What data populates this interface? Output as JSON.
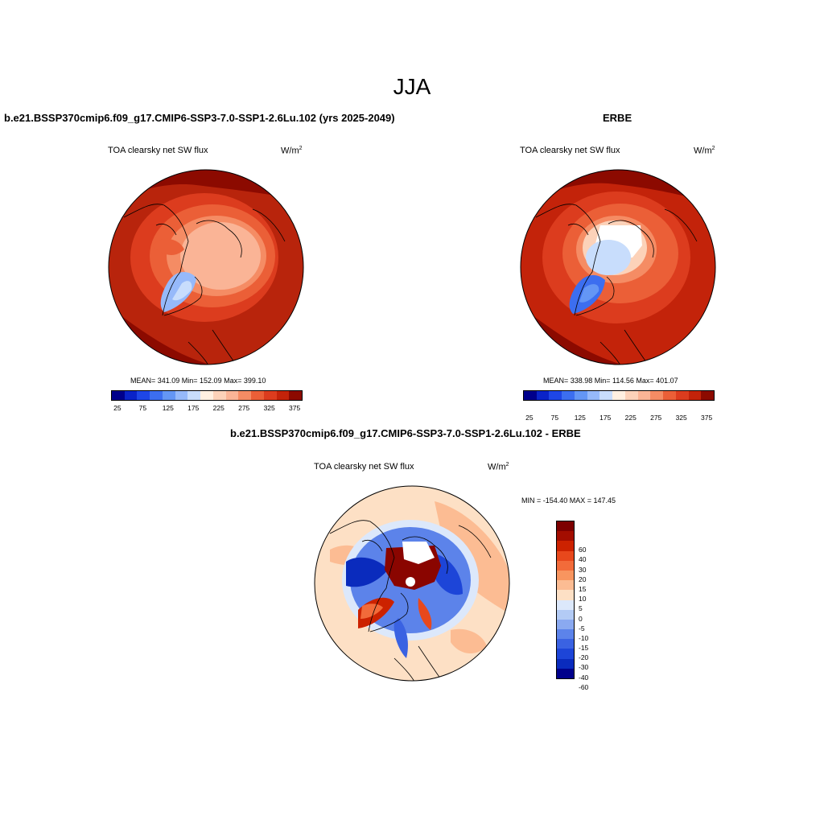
{
  "season": "JJA",
  "panels": {
    "model": {
      "title": "b.e21.BSSP370cmip6.f09_g17.CMIP6-SSP3-7.0-SSP1-2.6Lu.102 (yrs 2025-2049)",
      "field_label": "TOA clearsky net SW flux",
      "units": "W/m",
      "units_sup": "2",
      "stats": "MEAN= 341.09  Min= 152.09  Max= 399.10"
    },
    "obs": {
      "title": "ERBE",
      "field_label": "TOA clearsky net SW flux",
      "units": "W/m",
      "units_sup": "2",
      "stats": "MEAN= 338.98  Min= 114.56  Max= 401.07"
    },
    "diff": {
      "title": "b.e21.BSSP370cmip6.f09_g17.CMIP6-SSP3-7.0-SSP1-2.6Lu.102 - ERBE",
      "field_label": "TOA clearsky net SW flux",
      "units": "W/m",
      "units_sup": "2",
      "stats": "MIN = -154.40 MAX = 147.45"
    }
  },
  "colorbar_abs": {
    "colors": [
      "#00008b",
      "#0a23c8",
      "#1e46e6",
      "#3c6ef0",
      "#6496f5",
      "#96b9fa",
      "#c8ddfc",
      "#fff0e1",
      "#fcd2b9",
      "#fab496",
      "#f58c64",
      "#eb5f37",
      "#dc3c1e",
      "#c3230a",
      "#8c0a00"
    ],
    "tick_labels": [
      "25",
      "75",
      "125",
      "175",
      "225",
      "275",
      "325",
      "375"
    ]
  },
  "colorbar_diff": {
    "colors": [
      "#7d0000",
      "#a30d00",
      "#cc2200",
      "#e8481c",
      "#f26b3a",
      "#f8955f",
      "#fcbc93",
      "#fde0c5",
      "#dce8fb",
      "#b3cbf5",
      "#8aa9f0",
      "#5c83ea",
      "#3a62e2",
      "#1d45d8",
      "#0a2bbd",
      "#00008b"
    ],
    "tick_labels": [
      "60",
      "40",
      "30",
      "20",
      "15",
      "10",
      "5",
      "0",
      "-5",
      "-10",
      "-15",
      "-20",
      "-30",
      "-40",
      "-60"
    ]
  }
}
